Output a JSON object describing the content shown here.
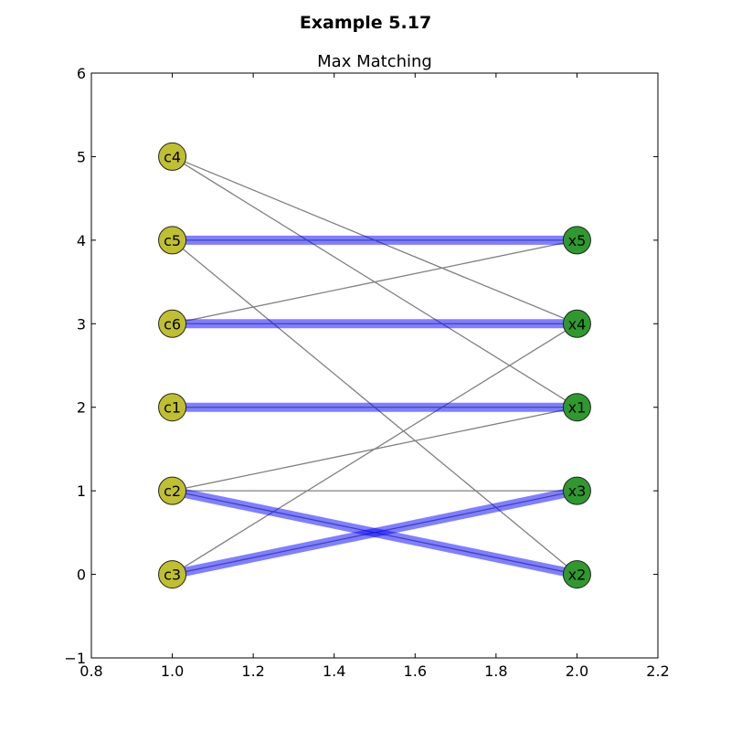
{
  "suptitle": "Example 5.17",
  "chart_data": {
    "type": "scatter",
    "title": "Max Matching",
    "xlabel": "",
    "ylabel": "",
    "xlim": [
      0.8,
      2.2
    ],
    "ylim": [
      -1,
      6
    ],
    "x_ticks": [
      "0.8",
      "1.0",
      "1.2",
      "1.4",
      "1.6",
      "1.8",
      "2.0",
      "2.2"
    ],
    "y_ticks": [
      "−1",
      "0",
      "1",
      "2",
      "3",
      "4",
      "5",
      "6"
    ],
    "grid": false,
    "nodes": [
      {
        "id": "c4",
        "x": 1.0,
        "y": 5,
        "color": "#bfbf2f"
      },
      {
        "id": "c5",
        "x": 1.0,
        "y": 4,
        "color": "#bfbf2f"
      },
      {
        "id": "c6",
        "x": 1.0,
        "y": 3,
        "color": "#bfbf2f"
      },
      {
        "id": "c1",
        "x": 1.0,
        "y": 2,
        "color": "#bfbf2f"
      },
      {
        "id": "c2",
        "x": 1.0,
        "y": 1,
        "color": "#bfbf2f"
      },
      {
        "id": "c3",
        "x": 1.0,
        "y": 0,
        "color": "#bfbf2f"
      },
      {
        "id": "x5",
        "x": 2.0,
        "y": 4,
        "color": "#2e9a2e"
      },
      {
        "id": "x4",
        "x": 2.0,
        "y": 3,
        "color": "#2e9a2e"
      },
      {
        "id": "x1",
        "x": 2.0,
        "y": 2,
        "color": "#2e9a2e"
      },
      {
        "id": "x3",
        "x": 2.0,
        "y": 1,
        "color": "#2e9a2e"
      },
      {
        "id": "x2",
        "x": 2.0,
        "y": 0,
        "color": "#2e9a2e"
      }
    ],
    "edges": [
      {
        "from": "c4",
        "to": "x4"
      },
      {
        "from": "c4",
        "to": "x1"
      },
      {
        "from": "c5",
        "to": "x5"
      },
      {
        "from": "c5",
        "to": "x2"
      },
      {
        "from": "c6",
        "to": "x5"
      },
      {
        "from": "c6",
        "to": "x4"
      },
      {
        "from": "c1",
        "to": "x1"
      },
      {
        "from": "c2",
        "to": "x1"
      },
      {
        "from": "c2",
        "to": "x3"
      },
      {
        "from": "c2",
        "to": "x2"
      },
      {
        "from": "c3",
        "to": "x4"
      },
      {
        "from": "c3",
        "to": "x3"
      }
    ],
    "matching": [
      {
        "from": "c5",
        "to": "x5"
      },
      {
        "from": "c6",
        "to": "x4"
      },
      {
        "from": "c1",
        "to": "x1"
      },
      {
        "from": "c2",
        "to": "x2"
      },
      {
        "from": "c3",
        "to": "x3"
      }
    ],
    "colors": {
      "edge": "#808080",
      "matching": "#0000ff",
      "node_stroke": "#222222"
    }
  }
}
